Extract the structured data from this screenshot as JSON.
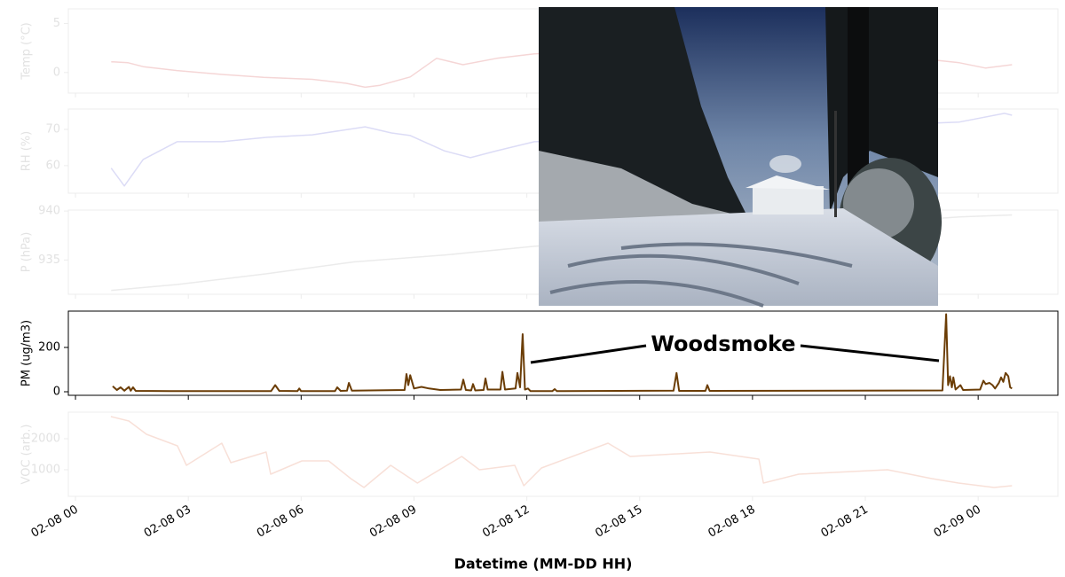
{
  "chart_data": [
    {
      "type": "line",
      "faded": true,
      "y_label": "Temp (°C)",
      "color": "#f5d6d6",
      "ylim": [
        -2.1,
        6.5
      ],
      "yticks": [
        0,
        5
      ],
      "x": [
        0.95,
        1.4,
        1.8,
        2.7,
        3.9,
        5.0,
        6.3,
        7.2,
        7.7,
        8.1,
        8.9,
        9.6,
        10.3,
        11.2,
        12.2,
        14,
        17,
        20,
        22.5,
        23.5,
        24.2,
        24.9
      ],
      "values": [
        1.1,
        1.0,
        0.6,
        0.2,
        -0.2,
        -0.5,
        -0.7,
        -1.1,
        -1.5,
        -1.3,
        -0.45,
        1.45,
        0.8,
        1.45,
        1.9,
        2.2,
        1.5,
        1.8,
        1.4,
        1.0,
        0.45,
        0.8
      ]
    },
    {
      "type": "line",
      "faded": true,
      "y_label": "RH (%)",
      "color": "#dcdcf6",
      "ylim": [
        52.4,
        75.6
      ],
      "yticks": [
        60,
        70
      ],
      "x": [
        0.95,
        1.3,
        1.8,
        2.7,
        3.9,
        5.1,
        6.3,
        7.7,
        8.4,
        8.9,
        9.8,
        10.5,
        11.2,
        12.2,
        15,
        18,
        21,
        23.5,
        24.7,
        24.9
      ],
      "values": [
        59.3,
        54.4,
        61.7,
        66.6,
        66.6,
        67.8,
        68.5,
        70.7,
        69,
        68.3,
        64.1,
        62.2,
        64.1,
        66.6,
        67,
        69,
        71,
        72,
        74.4,
        73.9
      ]
    },
    {
      "type": "line",
      "faded": true,
      "y_label": "P (hPa)",
      "color": "#ebebeb",
      "ylim": [
        931.5,
        940.1
      ],
      "yticks": [
        935,
        940
      ],
      "x": [
        0.95,
        2.7,
        5.1,
        7.4,
        9.8,
        12.2,
        16,
        20,
        23.5,
        24.9
      ],
      "values": [
        931.9,
        932.5,
        933.6,
        934.8,
        935.5,
        936.4,
        937.5,
        938.5,
        939.4,
        939.6
      ]
    },
    {
      "type": "line",
      "faded": false,
      "y_label": "PM (ug/m3)",
      "color": "#6b3d06",
      "ylim": [
        -16,
        364
      ],
      "yticks": [
        0,
        200
      ],
      "annotation": "Woodsmoke",
      "x": [
        0.99,
        1.1,
        1.2,
        1.3,
        1.42,
        1.47,
        1.53,
        1.6,
        2.5,
        5.2,
        5.31,
        5.42,
        5.9,
        5.95,
        6.0,
        6.9,
        6.96,
        7.05,
        7.22,
        7.27,
        7.35,
        8.75,
        8.8,
        8.85,
        8.9,
        9.0,
        9.2,
        9.4,
        9.7,
        10.25,
        10.31,
        10.38,
        10.52,
        10.57,
        10.63,
        10.85,
        10.9,
        10.96,
        11.3,
        11.35,
        11.42,
        11.7,
        11.75,
        11.82,
        11.89,
        11.95,
        12.03,
        12.1,
        12.68,
        12.74,
        12.8,
        15.9,
        15.98,
        16.05,
        16.75,
        16.8,
        16.86,
        23.05,
        23.15,
        23.2,
        23.25,
        23.3,
        23.34,
        23.4,
        23.53,
        23.6,
        24.05,
        24.14,
        24.2,
        24.3,
        24.38,
        24.45,
        24.55,
        24.61,
        24.67,
        24.73,
        24.8,
        24.85,
        24.9
      ],
      "values": [
        25,
        8,
        20,
        5,
        22,
        5,
        20,
        4,
        3,
        3,
        30,
        4,
        3,
        15,
        3,
        3,
        20,
        4,
        5,
        40,
        5,
        8,
        80,
        30,
        75,
        15,
        22,
        15,
        8,
        10,
        55,
        8,
        6,
        35,
        6,
        8,
        60,
        10,
        10,
        90,
        10,
        15,
        85,
        20,
        260,
        10,
        15,
        3,
        3,
        12,
        3,
        5,
        85,
        4,
        4,
        30,
        4,
        6,
        350,
        30,
        70,
        20,
        65,
        10,
        30,
        8,
        10,
        50,
        35,
        40,
        30,
        15,
        40,
        65,
        45,
        85,
        70,
        20,
        15
      ]
    },
    {
      "type": "line",
      "faded": true,
      "y_label": "VOC (arb.)",
      "color": "#f8e0d8",
      "ylim": [
        143,
        2857
      ],
      "yticks": [
        1000,
        2000
      ],
      "x_label": "Datetime (MM-DD HH)",
      "xlim": [
        -0.19,
        26.12
      ],
      "xticks": [
        {
          "value": 0,
          "label": "02-08 00"
        },
        {
          "value": 3,
          "label": "02-08 03"
        },
        {
          "value": 6,
          "label": "02-08 06"
        },
        {
          "value": 9,
          "label": "02-08 09"
        },
        {
          "value": 12,
          "label": "02-08 12"
        },
        {
          "value": 15,
          "label": "02-08 15"
        },
        {
          "value": 18,
          "label": "02-08 18"
        },
        {
          "value": 21,
          "label": "02-08 21"
        },
        {
          "value": 24,
          "label": "02-09 00"
        }
      ],
      "x": [
        0.94,
        1.42,
        1.89,
        2.71,
        2.95,
        3.89,
        4.13,
        5.07,
        5.19,
        6.02,
        6.73,
        7.32,
        7.67,
        8.38,
        9.09,
        10.27,
        10.74,
        11.68,
        11.92,
        12.39,
        14.16,
        14.75,
        16.87,
        18.17,
        18.29,
        19.23,
        21.59,
        22.77,
        23.48,
        24.42,
        24.9
      ],
      "values": [
        2714,
        2571,
        2143,
        1771,
        1143,
        1857,
        1229,
        1571,
        857,
        1286,
        1286,
        714,
        429,
        1143,
        571,
        1429,
        1000,
        1143,
        486,
        1057,
        1857,
        1429,
        1571,
        1343,
        571,
        857,
        1000,
        714,
        571,
        429,
        486
      ]
    }
  ]
}
